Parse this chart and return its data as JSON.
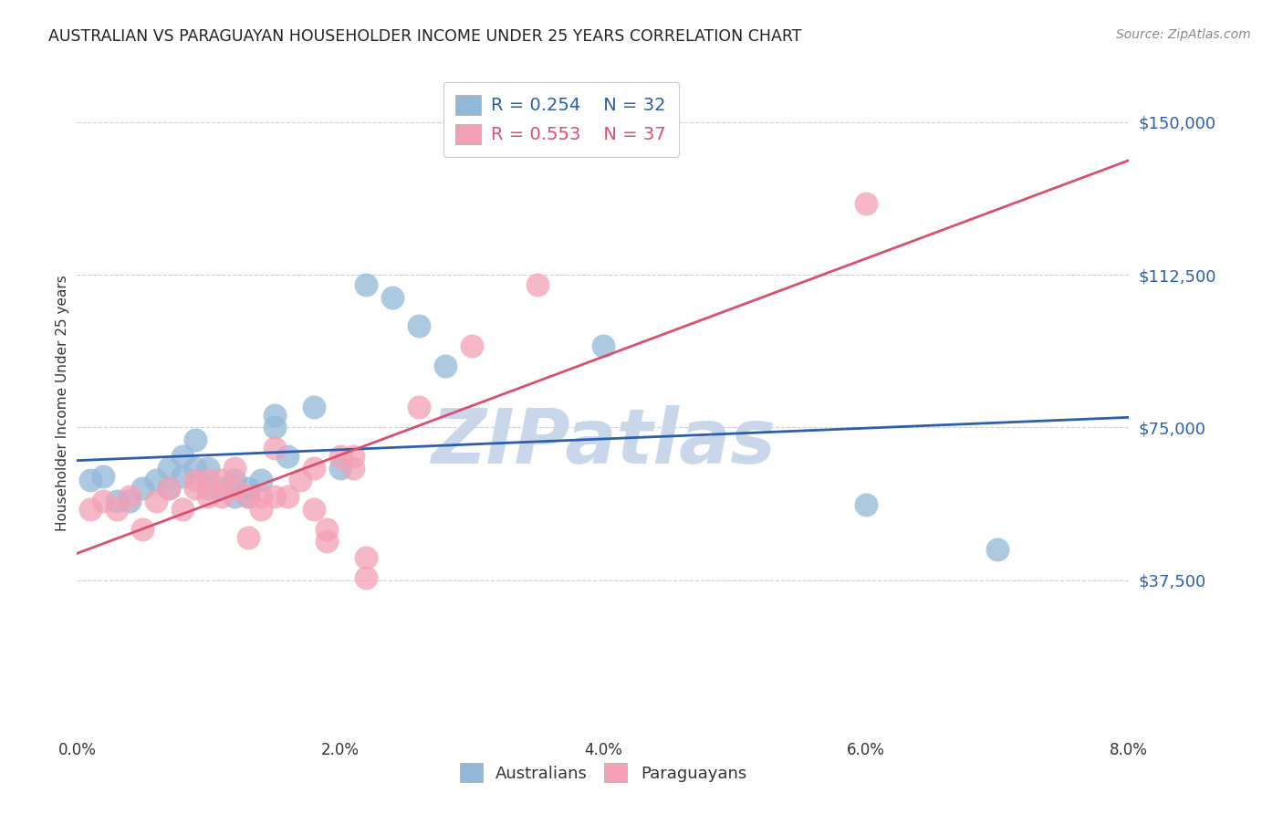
{
  "title": "AUSTRALIAN VS PARAGUAYAN HOUSEHOLDER INCOME UNDER 25 YEARS CORRELATION CHART",
  "source": "Source: ZipAtlas.com",
  "ylabel": "Householder Income Under 25 years",
  "ytick_values": [
    37500,
    75000,
    112500,
    150000
  ],
  "xlim": [
    0.0,
    0.08
  ],
  "ylim": [
    0,
    162000
  ],
  "australian_color": "#92b8d8",
  "paraguayan_color": "#f4a0b5",
  "australian_line_color": "#2b5faa",
  "paraguayan_line_color": "#d94f6e",
  "watermark_color": "#c8d8ea",
  "legend_r_aus": "R = 0.254",
  "legend_n_aus": "N = 32",
  "legend_r_par": "R = 0.553",
  "legend_n_par": "N = 37",
  "australian_x": [
    0.001,
    0.002,
    0.003,
    0.004,
    0.005,
    0.006,
    0.007,
    0.007,
    0.008,
    0.008,
    0.009,
    0.009,
    0.01,
    0.01,
    0.011,
    0.012,
    0.012,
    0.013,
    0.013,
    0.014,
    0.015,
    0.015,
    0.016,
    0.018,
    0.02,
    0.022,
    0.024,
    0.026,
    0.028,
    0.04,
    0.06,
    0.07
  ],
  "australian_y": [
    62000,
    63000,
    57000,
    57000,
    60000,
    62000,
    60000,
    65000,
    63000,
    68000,
    65000,
    72000,
    60000,
    65000,
    60000,
    58000,
    62000,
    58000,
    60000,
    62000,
    75000,
    78000,
    68000,
    80000,
    65000,
    110000,
    107000,
    100000,
    90000,
    95000,
    56000,
    45000
  ],
  "paraguayan_x": [
    0.001,
    0.002,
    0.003,
    0.004,
    0.005,
    0.006,
    0.007,
    0.008,
    0.009,
    0.009,
    0.01,
    0.01,
    0.011,
    0.011,
    0.012,
    0.012,
    0.013,
    0.013,
    0.014,
    0.014,
    0.015,
    0.015,
    0.016,
    0.017,
    0.018,
    0.018,
    0.019,
    0.019,
    0.02,
    0.021,
    0.021,
    0.022,
    0.022,
    0.026,
    0.03,
    0.035,
    0.06
  ],
  "paraguayan_y": [
    55000,
    57000,
    55000,
    58000,
    50000,
    57000,
    60000,
    55000,
    60000,
    62000,
    58000,
    62000,
    58000,
    62000,
    60000,
    65000,
    58000,
    48000,
    58000,
    55000,
    58000,
    70000,
    58000,
    62000,
    65000,
    55000,
    50000,
    47000,
    68000,
    68000,
    65000,
    38000,
    43000,
    80000,
    95000,
    110000,
    130000
  ],
  "background_color": "#ffffff",
  "grid_color": "#d0d0d0",
  "title_color": "#222222",
  "ytick_color": "#2b5faa",
  "source_color": "#888888"
}
